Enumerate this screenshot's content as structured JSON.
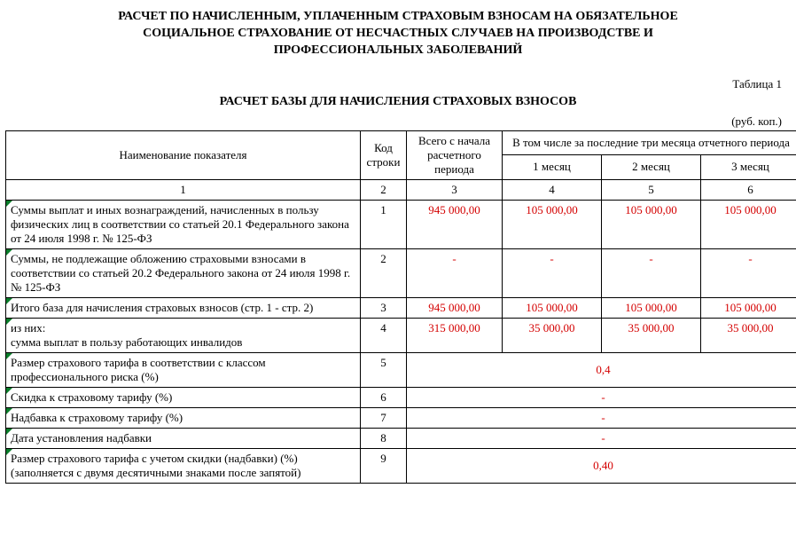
{
  "title_lines": [
    "РАСЧЕТ ПО НАЧИСЛЕННЫМ, УПЛАЧЕННЫМ СТРАХОВЫМ ВЗНОСАМ НА ОБЯЗАТЕЛЬНОЕ",
    "СОЦИАЛЬНОЕ СТРАХОВАНИЕ ОТ НЕСЧАСТНЫХ СЛУЧАЕВ НА ПРОИЗВОДСТВЕ И",
    "ПРОФЕССИОНАЛЬНЫХ ЗАБОЛЕВАНИЙ"
  ],
  "table_label": "Таблица 1",
  "subtitle": "РАСЧЕТ БАЗЫ ДЛЯ НАЧИСЛЕНИЯ СТРАХОВЫХ ВЗНОСОВ",
  "units": "(руб. коп.)",
  "header": {
    "name": "Наименование показателя",
    "code": "Код строки",
    "total": "Всего с начала расчетного периода",
    "group": "В том числе за последние три месяца отчетного периода",
    "m1": "1 месяц",
    "m2": "2 месяц",
    "m3": "3 месяц",
    "nums": [
      "1",
      "2",
      "3",
      "4",
      "5",
      "6"
    ]
  },
  "colors": {
    "value": "#d40000",
    "triangle": "#0a7d2a",
    "border": "#000000",
    "text": "#000000",
    "background": "#ffffff"
  },
  "fonts": {
    "family": "Times New Roman",
    "body_size_pt": 10,
    "title_size_pt": 11,
    "title_weight": "bold"
  },
  "rows": [
    {
      "name": "Суммы выплат и иных вознаграждений, начисленных в пользу физических лиц в соответствии со статьей 20.1 Федерального закона от 24 июля 1998 г. № 125-ФЗ",
      "code": "1",
      "total": "945 000,00",
      "m1": "105 000,00",
      "m2": "105 000,00",
      "m3": "105 000,00",
      "tri": true
    },
    {
      "name": "Суммы, не подлежащие обложению страховыми взносами в соответствии со статьей 20.2 Федерального закона от 24 июля 1998 г. № 125-ФЗ",
      "code": "2",
      "total": "-",
      "m1": "-",
      "m2": "-",
      "m3": "-",
      "tri": true
    },
    {
      "name": "Итого база для начисления страховых взносов (стр. 1 - стр. 2)",
      "code": "3",
      "total": "945 000,00",
      "m1": "105 000,00",
      "m2": "105 000,00",
      "m3": "105 000,00",
      "tri": true
    },
    {
      "name": "из них:\nсумма выплат в пользу работающих инвалидов",
      "code": "4",
      "total": "315 000,00",
      "m1": "35 000,00",
      "m2": "35 000,00",
      "m3": "35 000,00",
      "tri": true
    },
    {
      "name": "Размер страхового тарифа в соответствии с классом профессионального риска (%)",
      "code": "5",
      "merged": "0,4",
      "tri": true
    },
    {
      "name": "Скидка к страховому тарифу (%)",
      "code": "6",
      "merged": "-",
      "tri": true
    },
    {
      "name": "Надбавка к страховому тарифу (%)",
      "code": "7",
      "merged": "-",
      "tri": true
    },
    {
      "name": "Дата установления надбавки",
      "code": "8",
      "merged": "-",
      "tri": true
    },
    {
      "name": "Размер страхового тарифа с учетом скидки (надбавки) (%) (заполняется с двумя десятичными знаками после запятой)",
      "code": "9",
      "merged": "0,40",
      "tri": true
    }
  ]
}
